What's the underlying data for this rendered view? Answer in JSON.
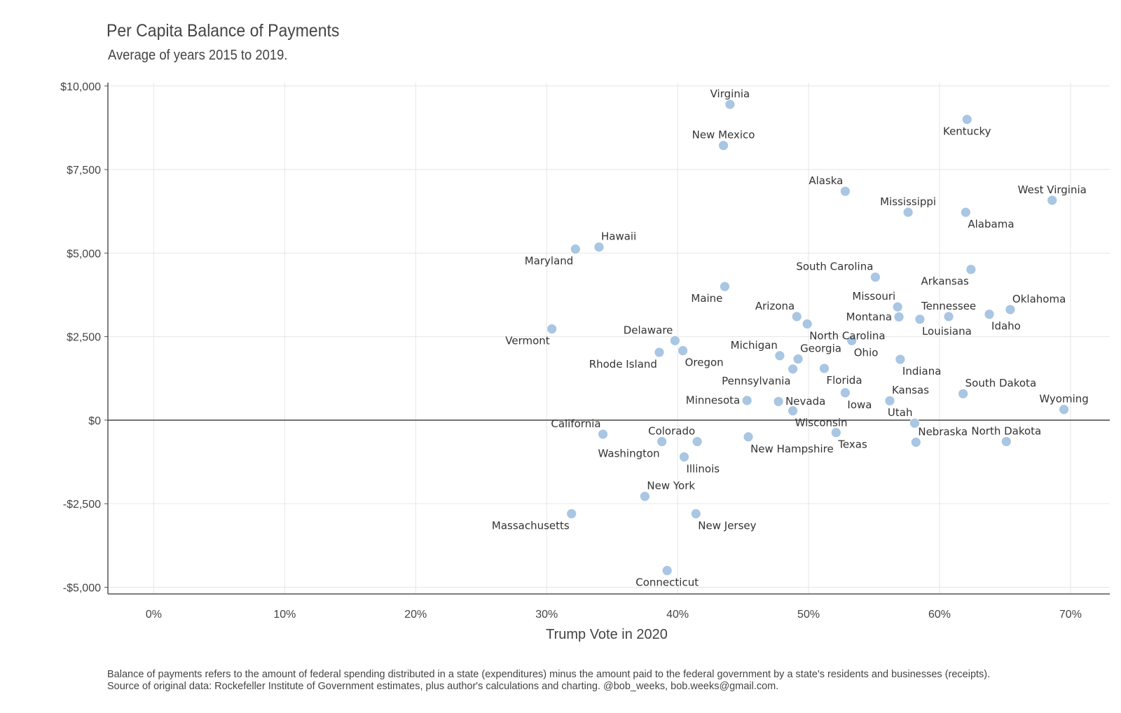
{
  "chart_data": {
    "type": "scatter",
    "title": "Per Capita Balance of Payments",
    "subtitle": "Average of years 2015 to 2019.",
    "xlabel": "Trump Vote in 2020",
    "ylabel": "",
    "xlim": [
      -3.5,
      73
    ],
    "ylim": [
      -5200,
      10100
    ],
    "x_ticks": [
      0,
      10,
      20,
      30,
      40,
      50,
      60,
      70
    ],
    "x_tick_labels": [
      "0%",
      "10%",
      "20%",
      "30%",
      "40%",
      "50%",
      "60%",
      "70%"
    ],
    "y_ticks": [
      -5000,
      -2500,
      0,
      2500,
      5000,
      7500,
      10000
    ],
    "y_tick_labels": [
      "-$5,000",
      "-$2,500",
      "$0",
      "$2,500",
      "$5,000",
      "$7,500",
      "$10,000"
    ],
    "grid": true,
    "zero_line": true,
    "marker_color": "#a9c6e3",
    "caption": "Balance of payments refers to the amount of federal spending distributed in a state (expenditures) minus the amount paid to the federal government by a state's residents and businesses (receipts). Source of original data: Rockefeller Institute of Government estimates, plus author's calculations and charting. @bob_weeks, bob.weeks@gmail.com.",
    "points": [
      {
        "label": "Virginia",
        "x": 44.0,
        "y": 9450,
        "pos": "above"
      },
      {
        "label": "Kentucky",
        "x": 62.1,
        "y": 9000,
        "pos": "below"
      },
      {
        "label": "New Mexico",
        "x": 43.5,
        "y": 8220,
        "pos": "above"
      },
      {
        "label": "Alaska",
        "x": 52.8,
        "y": 6850,
        "pos": "above-left"
      },
      {
        "label": "Mississippi",
        "x": 57.6,
        "y": 6220,
        "pos": "above"
      },
      {
        "label": "Alabama",
        "x": 62.0,
        "y": 6220,
        "pos": "below-right"
      },
      {
        "label": "West Virginia",
        "x": 68.6,
        "y": 6580,
        "pos": "above"
      },
      {
        "label": "Hawaii",
        "x": 34.0,
        "y": 5180,
        "pos": "above-right"
      },
      {
        "label": "Maryland",
        "x": 32.2,
        "y": 5120,
        "pos": "below-left"
      },
      {
        "label": "South Carolina",
        "x": 55.1,
        "y": 4280,
        "pos": "above-left"
      },
      {
        "label": "Arkansas",
        "x": 62.4,
        "y": 4510,
        "pos": "below-left"
      },
      {
        "label": "Maine",
        "x": 43.6,
        "y": 4000,
        "pos": "below-left"
      },
      {
        "label": "Missouri",
        "x": 56.8,
        "y": 3390,
        "pos": "above-left"
      },
      {
        "label": "Oklahoma",
        "x": 65.4,
        "y": 3310,
        "pos": "above-right"
      },
      {
        "label": "Tennessee",
        "x": 60.7,
        "y": 3100,
        "pos": "above"
      },
      {
        "label": "Idaho",
        "x": 63.8,
        "y": 3170,
        "pos": "below-right"
      },
      {
        "label": "Arizona",
        "x": 49.1,
        "y": 3100,
        "pos": "above-left"
      },
      {
        "label": "Montana",
        "x": 56.9,
        "y": 3090,
        "pos": "left"
      },
      {
        "label": "Louisiana",
        "x": 58.5,
        "y": 3020,
        "pos": "below-right"
      },
      {
        "label": "North Carolina",
        "x": 49.9,
        "y": 2880,
        "pos": "below-right"
      },
      {
        "label": "Vermont",
        "x": 30.4,
        "y": 2730,
        "pos": "below-left"
      },
      {
        "label": "Delaware",
        "x": 39.8,
        "y": 2380,
        "pos": "above-left"
      },
      {
        "label": "Ohio",
        "x": 53.3,
        "y": 2380,
        "pos": "below-right"
      },
      {
        "label": "Michigan",
        "x": 47.8,
        "y": 1930,
        "pos": "above-left"
      },
      {
        "label": "Georgia",
        "x": 49.2,
        "y": 1830,
        "pos": "above-right"
      },
      {
        "label": "Indiana",
        "x": 57.0,
        "y": 1820,
        "pos": "below-right"
      },
      {
        "label": "Rhode Island",
        "x": 38.6,
        "y": 2030,
        "pos": "below-left"
      },
      {
        "label": "Oregon",
        "x": 40.4,
        "y": 2080,
        "pos": "below-right"
      },
      {
        "label": "Pennsylvania",
        "x": 48.8,
        "y": 1530,
        "pos": "below-left"
      },
      {
        "label": "Florida",
        "x": 51.2,
        "y": 1550,
        "pos": "below-right"
      },
      {
        "label": "South Dakota",
        "x": 61.8,
        "y": 790,
        "pos": "above-right"
      },
      {
        "label": "Kansas",
        "x": 56.2,
        "y": 580,
        "pos": "above-right"
      },
      {
        "label": "Iowa",
        "x": 52.8,
        "y": 820,
        "pos": "below-right"
      },
      {
        "label": "Minnesota",
        "x": 45.3,
        "y": 590,
        "pos": "left"
      },
      {
        "label": "Nevada",
        "x": 47.7,
        "y": 560,
        "pos": "right"
      },
      {
        "label": "Wisconsin",
        "x": 48.8,
        "y": 280,
        "pos": "below-right"
      },
      {
        "label": "Wyoming",
        "x": 69.5,
        "y": 320,
        "pos": "above"
      },
      {
        "label": "Utah",
        "x": 58.1,
        "y": -90,
        "pos": "above-left"
      },
      {
        "label": "California",
        "x": 34.3,
        "y": -420,
        "pos": "above-left"
      },
      {
        "label": "Colorado",
        "x": 41.5,
        "y": -640,
        "pos": "above-left"
      },
      {
        "label": "Washington",
        "x": 38.8,
        "y": -640,
        "pos": "below-left"
      },
      {
        "label": "New Hampshire",
        "x": 45.4,
        "y": -500,
        "pos": "below-right"
      },
      {
        "label": "Texas",
        "x": 52.1,
        "y": -370,
        "pos": "below-right"
      },
      {
        "label": "Nebraska",
        "x": 58.2,
        "y": -660,
        "pos": "above-right"
      },
      {
        "label": "North Dakota",
        "x": 65.1,
        "y": -640,
        "pos": "above"
      },
      {
        "label": "Illinois",
        "x": 40.5,
        "y": -1100,
        "pos": "below-right"
      },
      {
        "label": "New York",
        "x": 37.5,
        "y": -2280,
        "pos": "above-right"
      },
      {
        "label": "Massachusetts",
        "x": 31.9,
        "y": -2800,
        "pos": "below-left"
      },
      {
        "label": "New Jersey",
        "x": 41.4,
        "y": -2800,
        "pos": "below-right"
      },
      {
        "label": "Connecticut",
        "x": 39.2,
        "y": -4500,
        "pos": "below"
      }
    ]
  }
}
